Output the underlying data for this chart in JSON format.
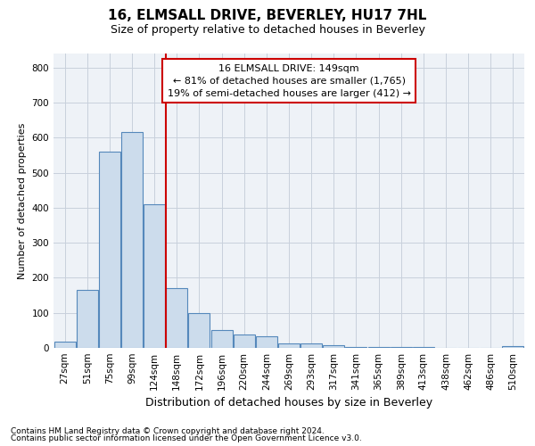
{
  "title": "16, ELMSALL DRIVE, BEVERLEY, HU17 7HL",
  "subtitle": "Size of property relative to detached houses in Beverley",
  "xlabel": "Distribution of detached houses by size in Beverley",
  "ylabel": "Number of detached properties",
  "footnote1": "Contains HM Land Registry data © Crown copyright and database right 2024.",
  "footnote2": "Contains public sector information licensed under the Open Government Licence v3.0.",
  "annotation_line1": "16 ELMSALL DRIVE: 149sqm",
  "annotation_line2": "← 81% of detached houses are smaller (1,765)",
  "annotation_line3": "19% of semi-detached houses are larger (412) →",
  "bar_labels": [
    "27sqm",
    "51sqm",
    "75sqm",
    "99sqm",
    "124sqm",
    "148sqm",
    "172sqm",
    "196sqm",
    "220sqm",
    "244sqm",
    "269sqm",
    "293sqm",
    "317sqm",
    "341sqm",
    "365sqm",
    "389sqm",
    "413sqm",
    "438sqm",
    "462sqm",
    "486sqm",
    "510sqm"
  ],
  "bar_values": [
    18,
    165,
    560,
    615,
    410,
    170,
    100,
    50,
    38,
    33,
    12,
    12,
    8,
    3,
    3,
    3,
    2,
    0,
    0,
    0,
    5
  ],
  "bar_color": "#ccdcec",
  "bar_edge_color": "#5588bb",
  "vline_color": "#cc0000",
  "annotation_box_color": "#cc0000",
  "ylim": [
    0,
    840
  ],
  "yticks": [
    0,
    100,
    200,
    300,
    400,
    500,
    600,
    700,
    800
  ],
  "grid_color": "#c8d0dc",
  "background_color": "#eef2f7",
  "title_fontsize": 11,
  "subtitle_fontsize": 9,
  "ylabel_fontsize": 8,
  "xlabel_fontsize": 9,
  "annotation_fontsize": 8,
  "tick_fontsize": 7.5,
  "footnote_fontsize": 6.5
}
